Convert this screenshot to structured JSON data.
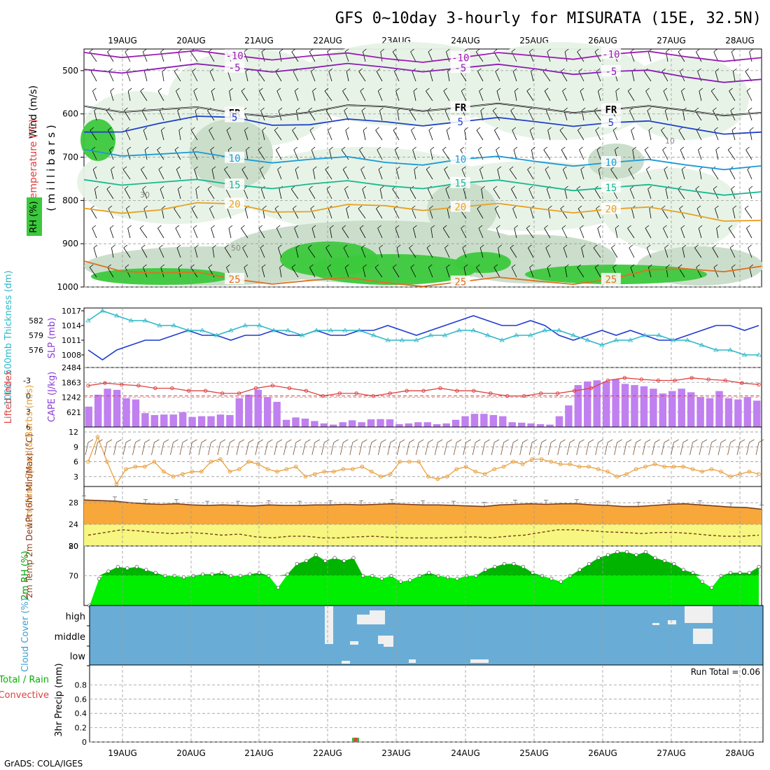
{
  "title": "GFS 0~10day 3-hourly for MISURATA (15E, 32.5N)",
  "footer": "GrADS: COLA/IGES",
  "dates": [
    "19AUG",
    "20AUG",
    "21AUG",
    "22AUG",
    "23AUG",
    "24AUG",
    "25AUG",
    "26AUG",
    "27AUG",
    "28AUG"
  ],
  "colors": {
    "grid": "#9a9a9a",
    "rh_light": "#e6f2e6",
    "rh_mid": "#c8dcc8",
    "rh_dark": "#a8bca8",
    "rh_green": "#3cc83c",
    "cloud": "#69add6",
    "cape_bar": "#c080f0",
    "precip_bar": "#3cb43c",
    "precip_conv": "#e04040"
  },
  "chart_data": [
    {
      "type": "contour",
      "name": "upper_air",
      "ylabel_parts": [
        "Wind (m/s)",
        "Temperature (°C)",
        "RH (%)",
        "( m i l l i b a r s )"
      ],
      "y_ticks": [
        500,
        600,
        700,
        800,
        900,
        1000
      ],
      "ylim": [
        450,
        1000
      ],
      "isotherms": [
        {
          "label": "-10",
          "color": "#9d1cb4",
          "levels": [
            458,
            462,
            465,
            466,
            472,
            470,
            466,
            462,
            468,
            470
          ]
        },
        {
          "label": "-5",
          "color": "#8a1cb4",
          "levels": [
            497,
            495,
            493,
            494,
            492,
            494,
            496,
            502,
            515,
            520
          ]
        },
        {
          "label": "FR",
          "color": "#000000",
          "levels": [
            582,
            590,
            598,
            596,
            583,
            585,
            586,
            590,
            592,
            597
          ]
        },
        {
          "label": "5",
          "color": "#1f40c8",
          "levels": [
            642,
            622,
            608,
            625,
            618,
            618,
            618,
            620,
            632,
            642
          ]
        },
        {
          "label": "10",
          "color": "#1c9ad6",
          "levels": [
            682,
            693,
            702,
            705,
            712,
            705,
            710,
            712,
            718,
            720
          ]
        },
        {
          "label": "15",
          "color": "#18b890",
          "levels": [
            752,
            758,
            764,
            762,
            766,
            760,
            765,
            770,
            776,
            780
          ]
        },
        {
          "label": "20",
          "color": "#e8a020",
          "levels": [
            818,
            822,
            808,
            826,
            812,
            815,
            818,
            820,
            830,
            846
          ]
        },
        {
          "label": "25",
          "color": "#e07020",
          "levels": [
            940,
            968,
            982,
            985,
            990,
            988,
            986,
            982,
            958,
            952
          ]
        }
      ],
      "rh_labels": [
        "30",
        "50",
        "10"
      ]
    },
    {
      "type": "line",
      "name": "thickness_slp",
      "ylabel_left": "1000~500mb Thickness (dm)",
      "ylabel_right": "SLP (mb)",
      "y_ticks_left": [
        576,
        579,
        582
      ],
      "y_ticks_right": [
        1008,
        1011,
        1014,
        1017
      ],
      "series": [
        {
          "name": "SLP",
          "color": "#1f3ad0",
          "ylim": [
            1006,
            1017
          ],
          "values": [
            1009,
            1007,
            1009,
            1010,
            1011,
            1011,
            1012,
            1013,
            1012,
            1012,
            1011,
            1012,
            1012,
            1013,
            1012,
            1012,
            1013,
            1012,
            1012,
            1013,
            1013,
            1014,
            1013,
            1012,
            1013,
            1014,
            1015,
            1016,
            1015,
            1014,
            1014,
            1015,
            1014,
            1012,
            1011,
            1012,
            1013,
            1012,
            1013,
            1012,
            1011,
            1011,
            1012,
            1013,
            1014,
            1014,
            1013,
            1014
          ]
        },
        {
          "name": "Thickness",
          "color": "#2cb8c8",
          "ylim": [
            573,
            584
          ],
          "values": [
            582,
            584,
            583,
            582,
            582,
            581,
            581,
            580,
            580,
            579,
            580,
            581,
            581,
            580,
            580,
            579,
            580,
            580,
            580,
            580,
            579,
            578,
            578,
            578,
            579,
            579,
            580,
            580,
            579,
            578,
            579,
            579,
            580,
            580,
            579,
            578,
            577,
            578,
            578,
            579,
            579,
            578,
            578,
            577,
            576,
            576,
            575,
            575
          ]
        }
      ]
    },
    {
      "type": "bar+line",
      "name": "cape_li",
      "ylabel_left": "Lifted Index",
      "ylabel_right": "CAPE (J/kg)",
      "y_ticks_left": [
        -3,
        0,
        3,
        6
      ],
      "y_ticks_right": [
        621,
        1242,
        1863,
        2484
      ],
      "cape_values": [
        850,
        1350,
        1600,
        1550,
        1200,
        1150,
        580,
        500,
        520,
        520,
        620,
        420,
        450,
        450,
        520,
        500,
        1200,
        1350,
        1550,
        1250,
        1050,
        300,
        400,
        350,
        250,
        150,
        100,
        200,
        280,
        200,
        320,
        330,
        320,
        120,
        150,
        200,
        200,
        120,
        150,
        300,
        450,
        550,
        550,
        500,
        450,
        200,
        180,
        150,
        120,
        100,
        450,
        900,
        1750,
        1900,
        1950,
        1900,
        2000,
        1800,
        1750,
        1700,
        1600,
        1400,
        1500,
        1600,
        1450,
        1250,
        1200,
        1500,
        1200,
        1150,
        1250,
        1100
      ],
      "li_values": [
        -2,
        -2.5,
        -2.2,
        -2,
        -1.5,
        -1.5,
        -1,
        -1,
        -0.5,
        -0.5,
        -1.5,
        -2,
        -1.5,
        -1,
        0,
        -0.5,
        -0.5,
        0,
        -0.5,
        -1,
        -1,
        -1.5,
        -1,
        -1,
        -0.5,
        0,
        0,
        -0.5,
        -0.5,
        -1,
        -1.5,
        -3,
        -3.5,
        -3.2,
        -3,
        -3,
        -3.5,
        -3.2,
        -3,
        -2.5,
        -2.2
      ]
    },
    {
      "type": "line",
      "name": "wind10m",
      "ylabel": "10m Wind Speed & Barbs (m/s)",
      "y_ticks": [
        3,
        6,
        9,
        12
      ],
      "ylim": [
        1,
        13
      ],
      "values": [
        6,
        11,
        6,
        1.5,
        4.5,
        5,
        5,
        6,
        4,
        3,
        3.5,
        4,
        4,
        6,
        6.5,
        4,
        4.5,
        6,
        5.5,
        4.5,
        4,
        4.5,
        5,
        3,
        3.5,
        4,
        4,
        4.5,
        4.5,
        5,
        4,
        3,
        3.5,
        6,
        6,
        6,
        3,
        2.5,
        3,
        4.5,
        5,
        4,
        3.5,
        4.5,
        5,
        6,
        5.5,
        6.5,
        6.5,
        6,
        5.5,
        5.5,
        5,
        5,
        4.5,
        4,
        3,
        3.5,
        4.5,
        5,
        5.5,
        5,
        5,
        5,
        4.5,
        4,
        4.5,
        4,
        3,
        3.5,
        4,
        3.5
      ]
    },
    {
      "type": "area",
      "name": "temp2m",
      "ylabel": "2m Temp 2m DewPt (6hr Min/Max) (°C)",
      "y_ticks": [
        20,
        24,
        28
      ],
      "ylim": [
        20,
        31
      ],
      "temp_values": [
        28.5,
        28.4,
        28.3,
        28,
        27.8,
        27.7,
        27.8,
        27.6,
        27.5,
        27.6,
        27.5,
        27.4,
        27.6,
        27.5,
        27.5,
        27.6,
        27.6,
        27.7,
        27.6,
        27.7,
        27.8,
        27.7,
        27.6,
        27.6,
        27.5,
        27.4,
        27.3,
        27.6,
        27.7,
        27.8,
        27.7,
        27.8,
        27.8,
        27.6,
        27.5,
        27.3,
        27.3,
        27.5,
        27.7,
        27.8,
        27.6,
        27.4,
        27.2,
        27.1,
        26.8
      ],
      "dewpt_values": [
        22,
        22.5,
        23,
        22.8,
        22.5,
        22.3,
        22.5,
        22.3,
        22,
        22.2,
        21.7,
        21.5,
        21.8,
        21.8,
        21.5,
        21.5,
        21.7,
        21.8,
        21.6,
        21.5,
        21.5,
        21.5,
        21.6,
        21.7,
        21.5,
        21.8,
        22,
        22.5,
        23,
        23,
        22.8,
        22.6,
        22.5,
        22.3,
        22.5,
        22.5,
        22.3,
        22,
        21.8,
        21.8,
        22
      ]
    },
    {
      "type": "area",
      "name": "rh2m",
      "ylabel": "2m RH (%)",
      "y_ticks": [
        70,
        80
      ],
      "ylim": [
        60,
        80
      ],
      "values": [
        60,
        69,
        71.5,
        73,
        72.5,
        73,
        72,
        71,
        70,
        70,
        69.5,
        70,
        70.5,
        70.5,
        71,
        70,
        70,
        70.5,
        71,
        70,
        66,
        70.5,
        74,
        75,
        77,
        75,
        76,
        75,
        76,
        70,
        70,
        69,
        70,
        68,
        68.5,
        70,
        71,
        70,
        69.5,
        69,
        70,
        70,
        72,
        73,
        74,
        74,
        73,
        71,
        70,
        69,
        68,
        70,
        72,
        74,
        76,
        77,
        78,
        78,
        77,
        78,
        76,
        75,
        74,
        72,
        71,
        68,
        66,
        70,
        71,
        71,
        71,
        73
      ]
    },
    {
      "type": "heatmap",
      "name": "cloud",
      "ylabel": "Cloud Cover (%)",
      "y_labels": [
        "high",
        "middle",
        "low"
      ],
      "clear_patches": [
        "22AUG high",
        "22AUG middle",
        "22AUG low",
        "23AUG high",
        "23AUG middle",
        "24AUG low",
        "27AUG high",
        "27AUG middle"
      ]
    },
    {
      "type": "bar",
      "name": "precip",
      "ylabel": "3hr Precip (mm)",
      "legend": [
        "Total / Rain",
        "Convective"
      ],
      "run_total": "Run Total =  0.06",
      "y_ticks": [
        0,
        0.2,
        0.4,
        0.6,
        0.8
      ],
      "ylim": [
        0,
        1
      ],
      "values": [
        {
          "date": "22AUG",
          "value": 0.06
        }
      ]
    }
  ]
}
